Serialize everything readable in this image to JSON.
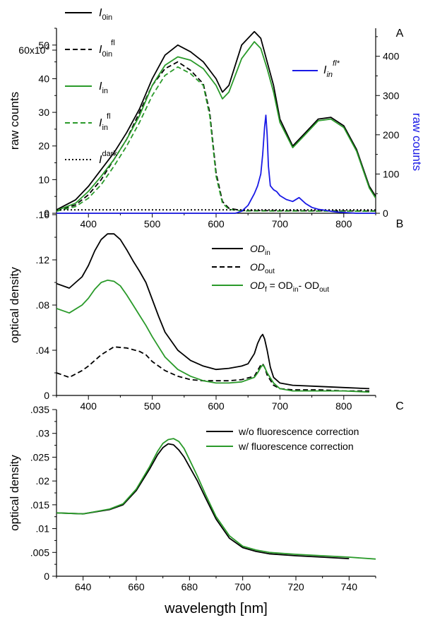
{
  "chart_data": [
    {
      "panel_label": "A",
      "type": "line",
      "xlabel": "",
      "ylabel": "raw counts",
      "y2label": "raw counts",
      "xlim": [
        350,
        850
      ],
      "ylim": [
        0,
        55000
      ],
      "y2lim": [
        0,
        471.4
      ],
      "xticks": [
        400,
        500,
        600,
        700,
        800
      ],
      "yticks": [
        {
          "v": 0,
          "t": "0"
        },
        {
          "v": 10000,
          "t": "10"
        },
        {
          "v": 20000,
          "t": "20"
        },
        {
          "v": 30000,
          "t": "30"
        },
        {
          "v": 40000,
          "t": "40"
        },
        {
          "v": 50000,
          "t": "50"
        }
      ],
      "ytick_top_label": "60x10",
      "ytick_top_exponent": "3",
      "y2ticks": [
        {
          "v": 0,
          "t": "0"
        },
        {
          "v": 100,
          "t": "100"
        },
        {
          "v": 200,
          "t": "200"
        },
        {
          "v": 300,
          "t": "300"
        },
        {
          "v": 400,
          "t": "400"
        }
      ],
      "legend": [
        {
          "base": "I",
          "sub": "0in",
          "sup": "",
          "color": "#000000",
          "dash": "solid"
        },
        {
          "base": "I",
          "sub": "0in",
          "sup": "fl",
          "color": "#000000",
          "dash": "dashed"
        },
        {
          "base": "I",
          "sub": "in",
          "sup": "",
          "color": "#2a9a2a",
          "dash": "solid"
        },
        {
          "base": "I",
          "sub": "in",
          "sup": "fl",
          "color": "#2a9a2a",
          "dash": "dashed"
        },
        {
          "base": "I",
          "sub": "",
          "sup": "dark",
          "color": "#000000",
          "dash": "dotted"
        }
      ],
      "legend_right": {
        "base": "I",
        "sub": "in",
        "sup": "fl*",
        "color": "#1a1ae6"
      },
      "series": [
        {
          "name": "I0in",
          "axis": "left",
          "color": "#000000",
          "dash": "solid",
          "x": [
            350,
            380,
            400,
            420,
            440,
            460,
            480,
            500,
            520,
            540,
            560,
            580,
            600,
            610,
            620,
            640,
            660,
            670,
            680,
            690,
            700,
            720,
            740,
            760,
            780,
            800,
            820,
            840,
            850
          ],
          "y": [
            1000,
            4000,
            8000,
            13000,
            18000,
            24000,
            31000,
            40000,
            47000,
            50000,
            48000,
            45000,
            40000,
            36000,
            38000,
            50000,
            54000,
            52000,
            45000,
            38000,
            28000,
            20000,
            24000,
            28000,
            28500,
            26000,
            19000,
            8000,
            5000
          ]
        },
        {
          "name": "I0in fl",
          "axis": "left",
          "color": "#000000",
          "dash": "dashed",
          "x": [
            350,
            380,
            400,
            420,
            440,
            460,
            480,
            500,
            520,
            540,
            560,
            580,
            590,
            600,
            610,
            620,
            640,
            850
          ],
          "y": [
            800,
            2500,
            5500,
            10000,
            16000,
            22000,
            30000,
            38000,
            43000,
            45000,
            42500,
            38500,
            30000,
            12000,
            3500,
            1500,
            800,
            700
          ]
        },
        {
          "name": "Iin",
          "axis": "left",
          "color": "#2a9a2a",
          "dash": "solid",
          "x": [
            350,
            380,
            400,
            420,
            440,
            460,
            480,
            500,
            520,
            540,
            560,
            580,
            600,
            610,
            620,
            640,
            660,
            670,
            680,
            690,
            700,
            720,
            740,
            760,
            780,
            800,
            820,
            840,
            850
          ],
          "y": [
            800,
            3000,
            6500,
            11000,
            16000,
            22000,
            29000,
            38000,
            44000,
            46500,
            45500,
            43000,
            38000,
            34000,
            36000,
            46000,
            51000,
            49000,
            43000,
            36000,
            27000,
            19500,
            23500,
            27500,
            28000,
            25500,
            18500,
            7500,
            4500
          ]
        },
        {
          "name": "Iin fl",
          "axis": "left",
          "color": "#2a9a2a",
          "dash": "dashed",
          "x": [
            350,
            380,
            400,
            420,
            440,
            460,
            480,
            500,
            520,
            540,
            560,
            580,
            590,
            600,
            610,
            620,
            640,
            850
          ],
          "y": [
            600,
            2000,
            4500,
            8500,
            14000,
            20000,
            27000,
            35000,
            41000,
            43500,
            41500,
            38000,
            29000,
            11000,
            3000,
            1200,
            700,
            600
          ]
        },
        {
          "name": "Idark",
          "axis": "left",
          "color": "#000000",
          "dash": "dotted",
          "x": [
            350,
            850
          ],
          "y": [
            1000,
            1000
          ]
        },
        {
          "name": "Iin fl*",
          "axis": "right",
          "color": "#1a1ae6",
          "dash": "solid",
          "x": [
            350,
            630,
            640,
            650,
            660,
            665,
            670,
            673,
            676,
            678,
            680,
            682,
            685,
            690,
            695,
            700,
            710,
            720,
            730,
            740,
            750,
            760,
            770,
            780,
            790,
            800,
            810,
            820,
            850
          ],
          "y": [
            0,
            0,
            5,
            20,
            50,
            70,
            100,
            150,
            220,
            250,
            200,
            120,
            70,
            60,
            55,
            45,
            35,
            30,
            40,
            25,
            15,
            10,
            8,
            5,
            3,
            2,
            1,
            0,
            0
          ]
        }
      ]
    },
    {
      "panel_label": "B",
      "type": "line",
      "xlabel": "",
      "ylabel": "optical density",
      "xlim": [
        350,
        850
      ],
      "ylim": [
        0,
        0.16
      ],
      "xticks": [
        400,
        500,
        600,
        700,
        800
      ],
      "yticks": [
        {
          "v": 0,
          "t": "0"
        },
        {
          "v": 0.04,
          "t": ".04"
        },
        {
          "v": 0.08,
          "t": ".08"
        },
        {
          "v": 0.12,
          "t": ".12"
        },
        {
          "v": 0.16,
          "t": ".16"
        }
      ],
      "legend": [
        {
          "base": "OD",
          "sub": "in",
          "rest": "",
          "color": "#000000",
          "dash": "solid"
        },
        {
          "base": "OD",
          "sub": "out",
          "rest": "",
          "color": "#000000",
          "dash": "dashed"
        },
        {
          "base": "OD",
          "sub": "f",
          "rest": " = OD",
          "sub2": "in",
          "rest2": "- OD",
          "sub3": "out",
          "color": "#2a9a2a",
          "dash": "solid"
        }
      ],
      "series": [
        {
          "name": "ODin",
          "color": "#000000",
          "dash": "solid",
          "x": [
            350,
            370,
            390,
            400,
            410,
            420,
            430,
            440,
            450,
            460,
            470,
            480,
            490,
            500,
            510,
            520,
            540,
            560,
            580,
            600,
            620,
            640,
            650,
            660,
            665,
            670,
            673,
            676,
            680,
            685,
            690,
            700,
            720,
            760,
            800,
            840
          ],
          "y": [
            0.099,
            0.095,
            0.105,
            0.115,
            0.128,
            0.138,
            0.143,
            0.143,
            0.138,
            0.129,
            0.119,
            0.11,
            0.1,
            0.085,
            0.07,
            0.056,
            0.04,
            0.031,
            0.026,
            0.023,
            0.024,
            0.026,
            0.028,
            0.037,
            0.046,
            0.052,
            0.054,
            0.05,
            0.04,
            0.025,
            0.016,
            0.011,
            0.009,
            0.008,
            0.007,
            0.006
          ]
        },
        {
          "name": "ODout",
          "color": "#000000",
          "dash": "dashed",
          "x": [
            350,
            370,
            390,
            400,
            420,
            440,
            460,
            480,
            490,
            500,
            520,
            540,
            560,
            580,
            600,
            620,
            640,
            660,
            665,
            670,
            673,
            676,
            680,
            690,
            700,
            720,
            760,
            800,
            840
          ],
          "y": [
            0.02,
            0.016,
            0.022,
            0.026,
            0.036,
            0.043,
            0.042,
            0.039,
            0.036,
            0.03,
            0.022,
            0.017,
            0.014,
            0.013,
            0.013,
            0.013,
            0.014,
            0.017,
            0.022,
            0.027,
            0.028,
            0.025,
            0.018,
            0.009,
            0.006,
            0.005,
            0.005,
            0.004,
            0.004
          ]
        },
        {
          "name": "ODf",
          "color": "#2a9a2a",
          "dash": "solid",
          "x": [
            350,
            370,
            390,
            400,
            410,
            420,
            430,
            440,
            450,
            460,
            470,
            480,
            490,
            500,
            510,
            520,
            540,
            560,
            580,
            600,
            620,
            640,
            660,
            665,
            670,
            673,
            676,
            680,
            690,
            700,
            720,
            760,
            800,
            840
          ],
          "y": [
            0.077,
            0.073,
            0.08,
            0.086,
            0.094,
            0.1,
            0.102,
            0.101,
            0.097,
            0.089,
            0.08,
            0.071,
            0.062,
            0.052,
            0.043,
            0.034,
            0.023,
            0.017,
            0.013,
            0.011,
            0.011,
            0.012,
            0.016,
            0.02,
            0.025,
            0.027,
            0.025,
            0.02,
            0.011,
            0.006,
            0.004,
            0.004,
            0.004,
            0.003
          ]
        }
      ]
    },
    {
      "panel_label": "C",
      "type": "line",
      "xlabel": "wavelength [nm]",
      "ylabel": "optical density",
      "xlim": [
        630,
        750
      ],
      "ylim": [
        0,
        0.035
      ],
      "xticks": [
        640,
        660,
        680,
        700,
        720,
        740
      ],
      "yticks": [
        {
          "v": 0,
          "t": "0"
        },
        {
          "v": 0.005,
          "t": ".005"
        },
        {
          "v": 0.01,
          "t": ".01"
        },
        {
          "v": 0.015,
          "t": ".015"
        },
        {
          "v": 0.02,
          "t": ".02"
        },
        {
          "v": 0.025,
          "t": ".025"
        },
        {
          "v": 0.03,
          "t": ".03"
        },
        {
          "v": 0.035,
          "t": ".035"
        }
      ],
      "legend": [
        {
          "text": "w/o fluorescence correction",
          "color": "#000000",
          "dash": "solid"
        },
        {
          "text": "w/   fluorescence correction",
          "color": "#2a9a2a",
          "dash": "solid"
        }
      ],
      "series": [
        {
          "name": "w/o fluorescence correction",
          "color": "#000000",
          "dash": "solid",
          "x": [
            630,
            640,
            650,
            655,
            660,
            665,
            668,
            670,
            672,
            674,
            676,
            678,
            680,
            683,
            686,
            690,
            695,
            700,
            705,
            710,
            720,
            730,
            740
          ],
          "y": [
            0.0133,
            0.0131,
            0.014,
            0.015,
            0.018,
            0.0225,
            0.0255,
            0.027,
            0.0278,
            0.0276,
            0.0265,
            0.025,
            0.023,
            0.02,
            0.0165,
            0.012,
            0.008,
            0.006,
            0.0052,
            0.0047,
            0.0043,
            0.004,
            0.0037
          ]
        },
        {
          "name": "w/ fluorescence correction",
          "color": "#2a9a2a",
          "dash": "solid",
          "x": [
            630,
            640,
            650,
            655,
            660,
            665,
            668,
            670,
            672,
            674,
            676,
            678,
            680,
            683,
            686,
            690,
            695,
            700,
            705,
            710,
            720,
            730,
            740,
            750
          ],
          "y": [
            0.0133,
            0.0131,
            0.0141,
            0.0152,
            0.0183,
            0.023,
            0.0262,
            0.0279,
            0.0287,
            0.0289,
            0.0283,
            0.0268,
            0.0245,
            0.021,
            0.0172,
            0.0125,
            0.0085,
            0.0063,
            0.0055,
            0.005,
            0.0046,
            0.0043,
            0.004,
            0.0036
          ]
        }
      ]
    }
  ]
}
